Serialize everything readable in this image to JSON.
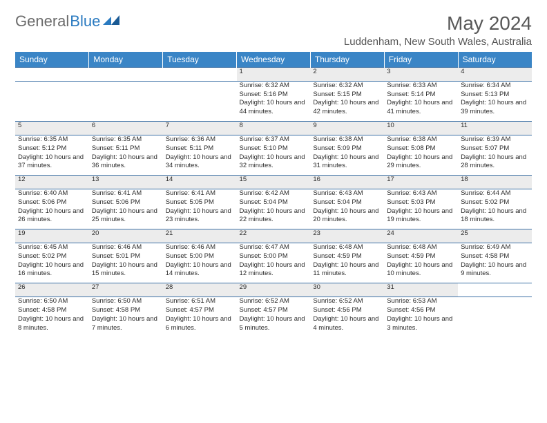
{
  "brand": {
    "part1": "General",
    "part2": "Blue"
  },
  "title": "May 2024",
  "location": "Luddenham, New South Wales, Australia",
  "colors": {
    "header_bg": "#3a85c6",
    "header_text": "#ffffff",
    "daynum_bg": "#ececec",
    "border": "#3a6fa5",
    "brand_gray": "#6b6b6b",
    "brand_blue": "#2a7ac0",
    "text": "#2b2b2b"
  },
  "day_labels": [
    "Sunday",
    "Monday",
    "Tuesday",
    "Wednesday",
    "Thursday",
    "Friday",
    "Saturday"
  ],
  "weeks": [
    [
      null,
      null,
      null,
      {
        "n": "1",
        "sr": "6:32 AM",
        "ss": "5:16 PM",
        "dl": "10 hours and 44 minutes."
      },
      {
        "n": "2",
        "sr": "6:32 AM",
        "ss": "5:15 PM",
        "dl": "10 hours and 42 minutes."
      },
      {
        "n": "3",
        "sr": "6:33 AM",
        "ss": "5:14 PM",
        "dl": "10 hours and 41 minutes."
      },
      {
        "n": "4",
        "sr": "6:34 AM",
        "ss": "5:13 PM",
        "dl": "10 hours and 39 minutes."
      }
    ],
    [
      {
        "n": "5",
        "sr": "6:35 AM",
        "ss": "5:12 PM",
        "dl": "10 hours and 37 minutes."
      },
      {
        "n": "6",
        "sr": "6:35 AM",
        "ss": "5:11 PM",
        "dl": "10 hours and 36 minutes."
      },
      {
        "n": "7",
        "sr": "6:36 AM",
        "ss": "5:11 PM",
        "dl": "10 hours and 34 minutes."
      },
      {
        "n": "8",
        "sr": "6:37 AM",
        "ss": "5:10 PM",
        "dl": "10 hours and 32 minutes."
      },
      {
        "n": "9",
        "sr": "6:38 AM",
        "ss": "5:09 PM",
        "dl": "10 hours and 31 minutes."
      },
      {
        "n": "10",
        "sr": "6:38 AM",
        "ss": "5:08 PM",
        "dl": "10 hours and 29 minutes."
      },
      {
        "n": "11",
        "sr": "6:39 AM",
        "ss": "5:07 PM",
        "dl": "10 hours and 28 minutes."
      }
    ],
    [
      {
        "n": "12",
        "sr": "6:40 AM",
        "ss": "5:06 PM",
        "dl": "10 hours and 26 minutes."
      },
      {
        "n": "13",
        "sr": "6:41 AM",
        "ss": "5:06 PM",
        "dl": "10 hours and 25 minutes."
      },
      {
        "n": "14",
        "sr": "6:41 AM",
        "ss": "5:05 PM",
        "dl": "10 hours and 23 minutes."
      },
      {
        "n": "15",
        "sr": "6:42 AM",
        "ss": "5:04 PM",
        "dl": "10 hours and 22 minutes."
      },
      {
        "n": "16",
        "sr": "6:43 AM",
        "ss": "5:04 PM",
        "dl": "10 hours and 20 minutes."
      },
      {
        "n": "17",
        "sr": "6:43 AM",
        "ss": "5:03 PM",
        "dl": "10 hours and 19 minutes."
      },
      {
        "n": "18",
        "sr": "6:44 AM",
        "ss": "5:02 PM",
        "dl": "10 hours and 18 minutes."
      }
    ],
    [
      {
        "n": "19",
        "sr": "6:45 AM",
        "ss": "5:02 PM",
        "dl": "10 hours and 16 minutes."
      },
      {
        "n": "20",
        "sr": "6:46 AM",
        "ss": "5:01 PM",
        "dl": "10 hours and 15 minutes."
      },
      {
        "n": "21",
        "sr": "6:46 AM",
        "ss": "5:00 PM",
        "dl": "10 hours and 14 minutes."
      },
      {
        "n": "22",
        "sr": "6:47 AM",
        "ss": "5:00 PM",
        "dl": "10 hours and 12 minutes."
      },
      {
        "n": "23",
        "sr": "6:48 AM",
        "ss": "4:59 PM",
        "dl": "10 hours and 11 minutes."
      },
      {
        "n": "24",
        "sr": "6:48 AM",
        "ss": "4:59 PM",
        "dl": "10 hours and 10 minutes."
      },
      {
        "n": "25",
        "sr": "6:49 AM",
        "ss": "4:58 PM",
        "dl": "10 hours and 9 minutes."
      }
    ],
    [
      {
        "n": "26",
        "sr": "6:50 AM",
        "ss": "4:58 PM",
        "dl": "10 hours and 8 minutes."
      },
      {
        "n": "27",
        "sr": "6:50 AM",
        "ss": "4:58 PM",
        "dl": "10 hours and 7 minutes."
      },
      {
        "n": "28",
        "sr": "6:51 AM",
        "ss": "4:57 PM",
        "dl": "10 hours and 6 minutes."
      },
      {
        "n": "29",
        "sr": "6:52 AM",
        "ss": "4:57 PM",
        "dl": "10 hours and 5 minutes."
      },
      {
        "n": "30",
        "sr": "6:52 AM",
        "ss": "4:56 PM",
        "dl": "10 hours and 4 minutes."
      },
      {
        "n": "31",
        "sr": "6:53 AM",
        "ss": "4:56 PM",
        "dl": "10 hours and 3 minutes."
      },
      null
    ]
  ],
  "labels": {
    "sunrise": "Sunrise:",
    "sunset": "Sunset:",
    "daylight": "Daylight:"
  }
}
